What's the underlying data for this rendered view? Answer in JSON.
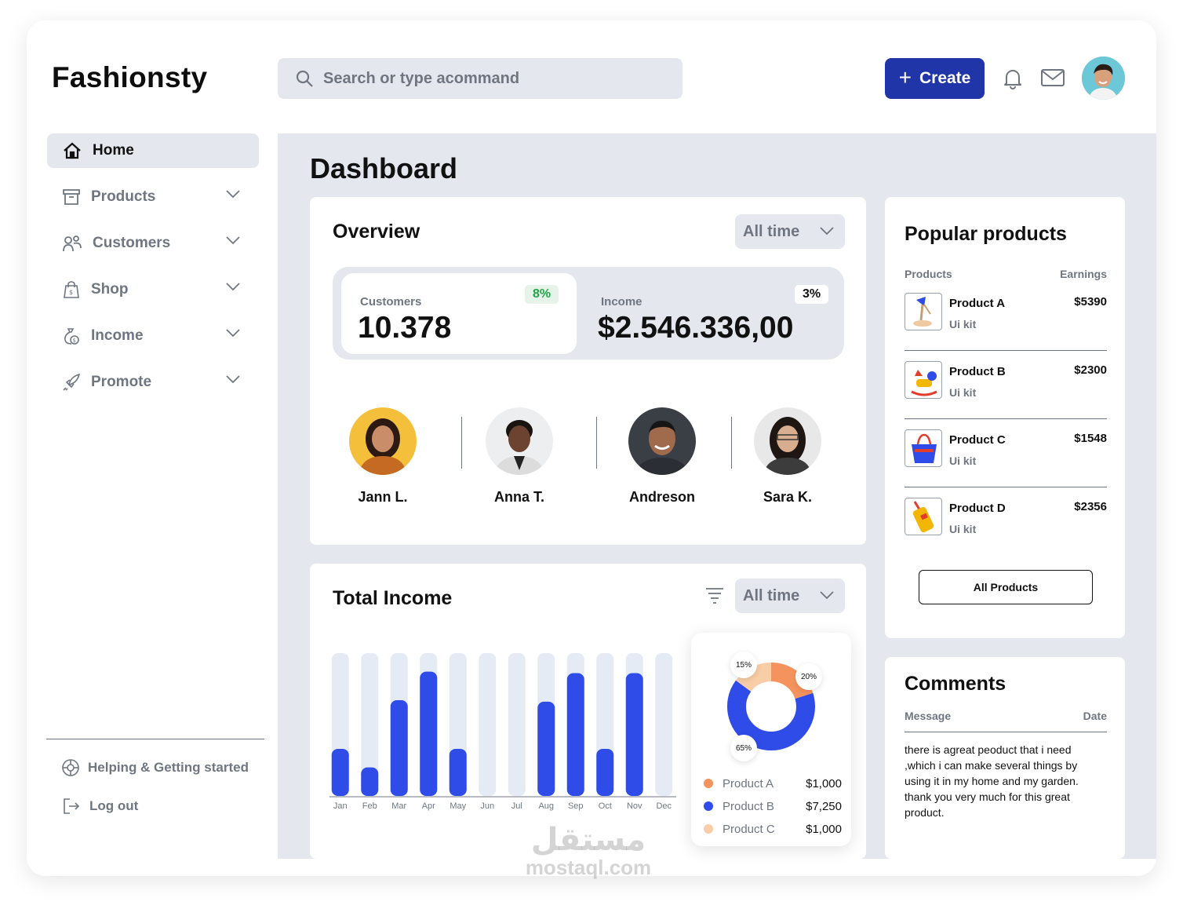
{
  "brand": "Fashionsty",
  "search": {
    "placeholder": "Search or type acommand"
  },
  "header": {
    "create_label": "Create"
  },
  "sidebar": {
    "items": [
      {
        "label": "Home"
      },
      {
        "label": "Products"
      },
      {
        "label": "Customers"
      },
      {
        "label": "Shop"
      },
      {
        "label": "Income"
      },
      {
        "label": "Promote"
      }
    ],
    "help_label": "Helping & Getting started",
    "logout_label": "Log out"
  },
  "page_title": "Dashboard",
  "overview": {
    "title": "Overview",
    "filter": "All time",
    "customers": {
      "label": "Customers",
      "value": "10.378",
      "change": "8%"
    },
    "income": {
      "label": "Income",
      "value": "$2.546.336,00",
      "change": "3%"
    },
    "people": [
      {
        "name": "Jann L."
      },
      {
        "name": "Anna T."
      },
      {
        "name": "Andreson"
      },
      {
        "name": "Sara K."
      }
    ]
  },
  "total_income": {
    "title": "Total Income",
    "filter": "All time",
    "legend": [
      {
        "name": "Product A",
        "value": "$1,000",
        "pct": "20%",
        "color": "#f5935e"
      },
      {
        "name": "Product B",
        "value": "$7,250",
        "pct": "65%",
        "color": "#2f4be8"
      },
      {
        "name": "Product C",
        "value": "$1,000",
        "pct": "15%",
        "color": "#f9cda6"
      }
    ]
  },
  "chart_data": {
    "type": "bar",
    "categories": [
      "Jan",
      "Feb",
      "Mar",
      "Apr",
      "May",
      "Jun",
      "Jul",
      "Aug",
      "Sep",
      "Oct",
      "Nov",
      "Dec"
    ],
    "values": [
      0.33,
      0.2,
      0.67,
      0.87,
      0.33,
      0,
      0,
      0.66,
      0.86,
      0.33,
      0.86,
      0
    ],
    "ylim": [
      0,
      1
    ],
    "colors": {
      "bar": "#2f4be8",
      "track": "#e4ebf5"
    },
    "pie": {
      "type": "pie",
      "labels": [
        "Product A",
        "Product B",
        "Product C"
      ],
      "values": [
        20,
        65,
        15
      ]
    }
  },
  "popular": {
    "title": "Popular products",
    "col_products": "Products",
    "col_earnings": "Earnings",
    "items": [
      {
        "name": "Product A",
        "sub": "Ui kit",
        "earnings": "$5390"
      },
      {
        "name": "Product B",
        "sub": "Ui kit",
        "earnings": "$2300"
      },
      {
        "name": "Product C",
        "sub": "Ui kit",
        "earnings": "$1548"
      },
      {
        "name": "Product D",
        "sub": "Ui kit",
        "earnings": "$2356"
      }
    ],
    "button": "All Products"
  },
  "comments": {
    "title": "Comments",
    "col_message": "Message",
    "col_date": "Date",
    "text": "there is agreat peoduct that i need ,which i can make several things by using it in my home and my garden. thank you very much for this great product."
  },
  "watermark": {
    "arabic": "مستقل",
    "latin": "mostaql.com"
  },
  "colors": {
    "accent": "#1f35a8",
    "muted": "#6f7682",
    "panel": "#e4e7ed"
  }
}
